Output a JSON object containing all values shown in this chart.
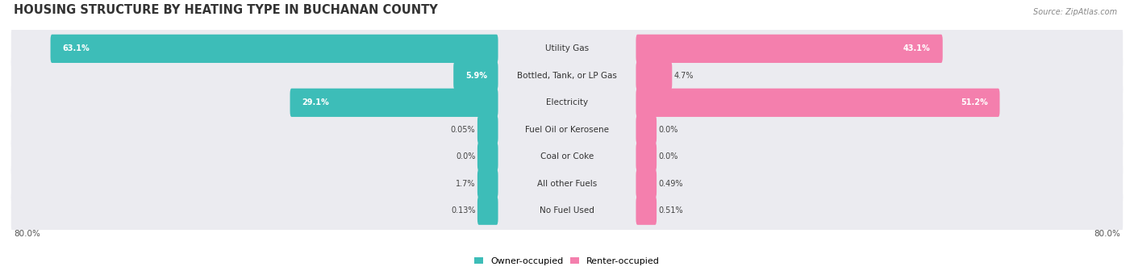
{
  "title": "HOUSING STRUCTURE BY HEATING TYPE IN BUCHANAN COUNTY",
  "source": "Source: ZipAtlas.com",
  "categories": [
    "Utility Gas",
    "Bottled, Tank, or LP Gas",
    "Electricity",
    "Fuel Oil or Kerosene",
    "Coal or Coke",
    "All other Fuels",
    "No Fuel Used"
  ],
  "owner_values": [
    63.1,
    5.9,
    29.1,
    0.05,
    0.0,
    1.7,
    0.13
  ],
  "renter_values": [
    43.1,
    4.7,
    51.2,
    0.0,
    0.0,
    0.49,
    0.51
  ],
  "owner_labels": [
    "63.1%",
    "5.9%",
    "29.1%",
    "0.05%",
    "0.0%",
    "1.7%",
    "0.13%"
  ],
  "renter_labels": [
    "43.1%",
    "4.7%",
    "51.2%",
    "0.0%",
    "0.0%",
    "0.49%",
    "0.51%"
  ],
  "owner_color": "#3dbdb8",
  "renter_color": "#f47fad",
  "row_bg_color": "#ebebf0",
  "max_value": 80.0,
  "title_fontsize": 10.5,
  "bar_height": 0.62,
  "owner_label": "Owner-occupied",
  "renter_label": "Renter-occupied",
  "min_bar_display": 2.0,
  "label_threshold_inside": 5.0
}
